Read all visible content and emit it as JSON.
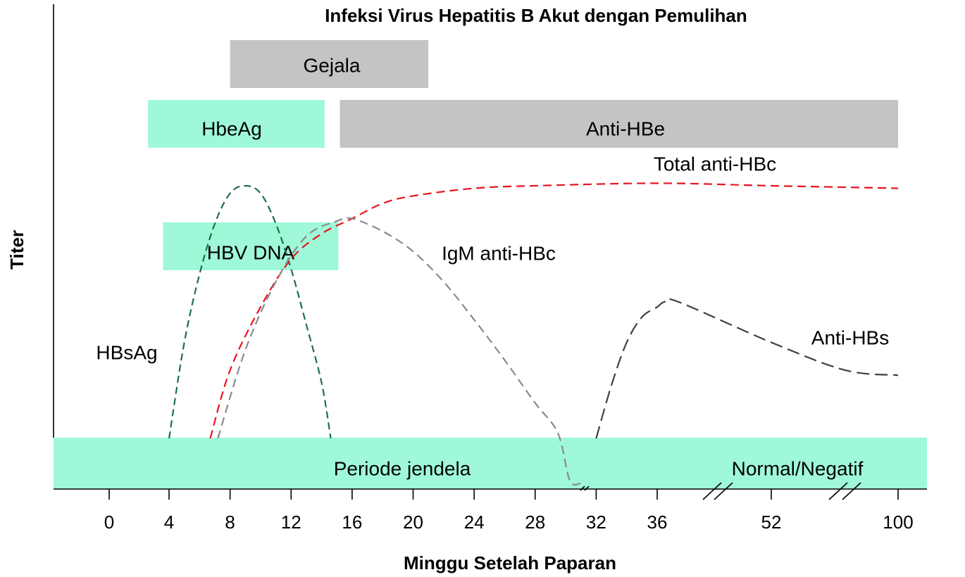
{
  "chart_data": {
    "type": "line",
    "title": "Infeksi Virus Hepatitis B Akut dengan Pemulihan",
    "xlabel": "Minggu Setelah Paparan",
    "ylabel": "Titer",
    "x_ticks": [
      "0",
      "4",
      "8",
      "12",
      "16",
      "20",
      "24",
      "28",
      "32",
      "36",
      "52",
      "100"
    ],
    "x_axis_breaks": [
      [
        36,
        52
      ],
      [
        52,
        100
      ]
    ],
    "grid": false,
    "bands": [
      {
        "name": "Gejala",
        "start": 8,
        "end": 21,
        "color": "#c4c4c4"
      },
      {
        "name": "HbeAg",
        "start": 2.6,
        "end": 14.2,
        "color": "#9ff8d8"
      },
      {
        "name": "Anti-HBe",
        "start": 15.2,
        "end": 100,
        "color": "#c4c4c4"
      },
      {
        "name": "HBV DNA",
        "start": 3.6,
        "end": 15.1,
        "color": "#9ff8d8"
      },
      {
        "name": "Periode jendela",
        "color": "#9ff8d8"
      },
      {
        "name": "Normal/Negatif",
        "color": "#9ff8d8"
      }
    ],
    "series": [
      {
        "name": "HBsAg",
        "color": "#1e6e4a",
        "points": [
          [
            4,
            0
          ],
          [
            5,
            0.38
          ],
          [
            6,
            0.65
          ],
          [
            7,
            0.85
          ],
          [
            8,
            0.97
          ],
          [
            9,
            1.0
          ],
          [
            10,
            0.97
          ],
          [
            11,
            0.85
          ],
          [
            12,
            0.67
          ],
          [
            13,
            0.45
          ],
          [
            14,
            0.22
          ],
          [
            14.6,
            0.0
          ]
        ]
      },
      {
        "name": "Total anti-HBc",
        "color": "#e8141e",
        "points": [
          [
            6.7,
            0
          ],
          [
            8,
            0.27
          ],
          [
            10,
            0.52
          ],
          [
            12,
            0.71
          ],
          [
            14,
            0.81
          ],
          [
            16,
            0.87
          ],
          [
            18,
            0.93
          ],
          [
            20,
            0.96
          ],
          [
            24,
            0.99
          ],
          [
            28,
            1.0
          ],
          [
            36,
            1.01
          ],
          [
            52,
            1.0
          ],
          [
            100,
            0.99
          ]
        ]
      },
      {
        "name": "IgM anti-HBc",
        "color": "#8a8a8a",
        "points": [
          [
            7.2,
            0
          ],
          [
            9,
            0.35
          ],
          [
            11,
            0.62
          ],
          [
            13,
            0.8
          ],
          [
            15,
            0.86
          ],
          [
            16,
            0.87
          ],
          [
            18,
            0.82
          ],
          [
            20,
            0.74
          ],
          [
            22,
            0.62
          ],
          [
            24,
            0.47
          ],
          [
            26,
            0.31
          ],
          [
            28,
            0.14
          ],
          [
            29.5,
            0.02
          ],
          [
            30.3,
            -0.17
          ],
          [
            31.2,
            -0.17
          ]
        ]
      },
      {
        "name": "Anti-HBs",
        "color": "#404040",
        "points": [
          [
            32,
            0
          ],
          [
            33,
            0.21
          ],
          [
            34,
            0.38
          ],
          [
            35,
            0.48
          ],
          [
            36,
            0.52
          ],
          [
            37,
            0.54
          ],
          [
            39,
            0.54
          ],
          [
            52,
            0.38
          ],
          [
            80,
            0.27
          ],
          [
            100,
            0.25
          ]
        ]
      }
    ]
  }
}
